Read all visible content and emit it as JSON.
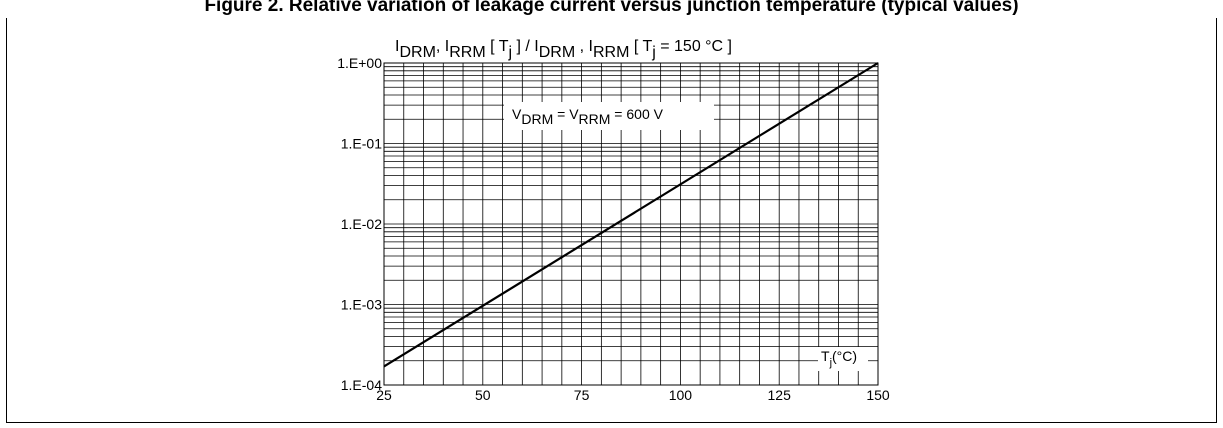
{
  "figure_heading": "Figure 2. Relative variation of leakage current versus junction temperature (typical values)",
  "chart_data": {
    "type": "line",
    "title": "I_DRM, I_RRM [ T_j ] / I_DRM , I_RRM [ T_j = 150 °C ]",
    "title_parts": {
      "i1": "I",
      "s1": "DRM",
      "i2": "I",
      "s2": "RRM",
      "m1": " [ T",
      "s3": "j",
      "m2": " ] / I",
      "s4": "DRM",
      "m3": " , I",
      "s5": "RRM",
      "m4": " [ T",
      "s6": "j",
      "m5": " = 150 °C ]"
    },
    "annotation": {
      "v1": "V",
      "s1": "DRM",
      "eq": " = V",
      "s2": "RRM",
      "tail": " = 600 V"
    },
    "xlabel": {
      "t": "T",
      "s": "j",
      "rest": "(°C)"
    },
    "x_scale": "linear",
    "y_scale": "log",
    "xlim": [
      25,
      150
    ],
    "ylim": [
      0.0001,
      1
    ],
    "x_ticks": [
      25,
      50,
      75,
      100,
      125,
      150
    ],
    "x_tick_labels": [
      "25",
      "50",
      "75",
      "100",
      "125",
      "150"
    ],
    "y_ticks": [
      0.0001,
      0.001,
      0.01,
      0.1,
      1
    ],
    "y_tick_labels": [
      "1.E-04",
      "1.E-03",
      "1.E-02",
      "1.E-01",
      "1.E+00"
    ],
    "grid": true,
    "series": [
      {
        "x": [
          25,
          150
        ],
        "y": [
          0.00017,
          1
        ]
      }
    ]
  }
}
